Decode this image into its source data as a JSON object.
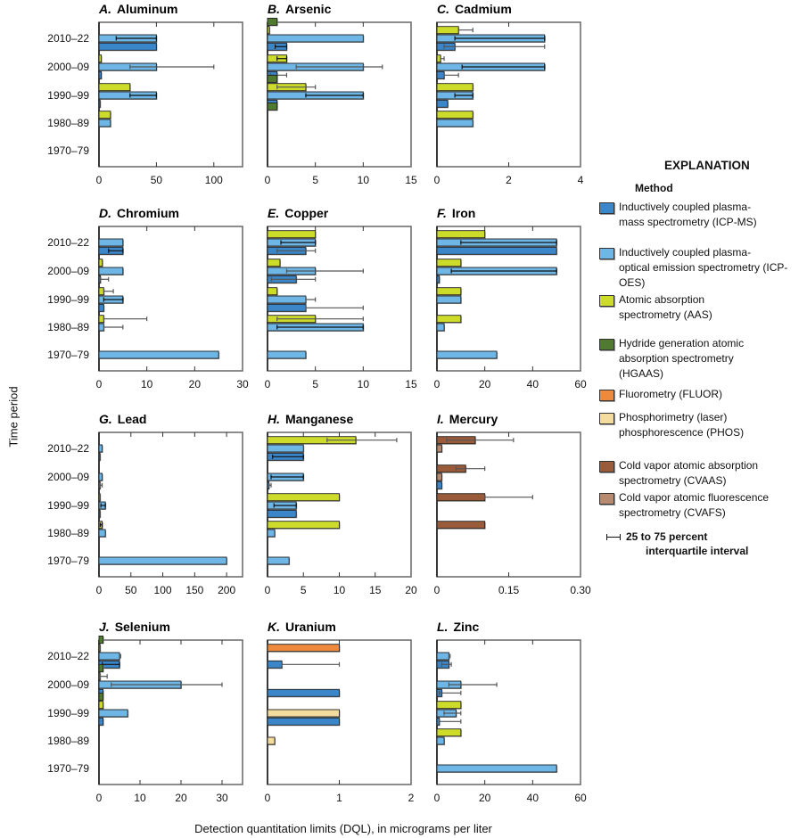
{
  "y_axis_label": "Time period",
  "x_axis_label": "Detection quantitation limits (DQL), in micrograms per liter",
  "legend": {
    "title": "EXPLANATION",
    "subtitle": "Method",
    "items": [
      {
        "key": "ICP-MS",
        "color": "#3a86c8",
        "lines": [
          "Inductively coupled plasma-",
          "mass spectrometry (ICP-MS)"
        ]
      },
      {
        "key": "ICP-OES",
        "color": "#6db6e6",
        "lines": [
          "Inductively coupled plasma-",
          "optical emission spectrometry (ICP-OES)"
        ]
      },
      {
        "key": "AAS",
        "color": "#cddc2a",
        "lines": [
          "Atomic absorption",
          "spectrometry (AAS)"
        ]
      },
      {
        "key": "HGAAS",
        "color": "#4f7a2f",
        "lines": [
          "Hydride generation atomic",
          "absorption spectrometry",
          "(HGAAS)"
        ]
      },
      {
        "key": "FLUOR",
        "color": "#ee8a3d",
        "lines": [
          "Fluorometry (FLUOR)"
        ]
      },
      {
        "key": "PHOS",
        "color": "#f3dc9e",
        "lines": [
          "Phosphorimetry (laser)",
          "phosphorescence (PHOS)"
        ]
      },
      {
        "key": "CVAAS",
        "color": "#9a5b3a",
        "lines": [
          "Cold vapor atomic absorption",
          "spectrometry (CVAAS)"
        ]
      },
      {
        "key": "CVAFS",
        "color": "#b88a70",
        "lines": [
          "Cold vapor atomic fluorescence",
          "spectrometry (CVAFS)"
        ]
      }
    ],
    "iqr_lines": [
      "25 to 75 percent",
      "interquartile interval"
    ]
  },
  "periods": [
    "2010–22",
    "2000–09",
    "1990–99",
    "1980–89",
    "1970–79"
  ],
  "chart_data": [
    {
      "type": "bar",
      "letter": "A.",
      "title": "Aluminum",
      "xlim": [
        0,
        125
      ],
      "ticks": [
        0,
        50,
        100
      ],
      "tick_labels": [
        "0",
        "50",
        "100"
      ],
      "periods": [
        [
          {
            "m": "ICP-OES",
            "v": 50,
            "iqr": [
              15,
              50
            ]
          },
          {
            "m": "ICP-MS",
            "v": 50
          }
        ],
        [
          {
            "m": "AAS",
            "v": 2
          },
          {
            "m": "ICP-OES",
            "v": 50,
            "iqr": [
              27,
              100
            ]
          },
          {
            "m": "ICP-MS",
            "v": 2
          }
        ],
        [
          {
            "m": "AAS",
            "v": 27
          },
          {
            "m": "ICP-OES",
            "v": 50,
            "iqr": [
              27,
              50
            ]
          },
          {
            "m": "ICP-MS",
            "v": 1
          }
        ],
        [
          {
            "m": "AAS",
            "v": 10
          },
          {
            "m": "ICP-OES",
            "v": 10
          }
        ],
        []
      ]
    },
    {
      "type": "bar",
      "letter": "B.",
      "title": "Arsenic",
      "xlim": [
        0,
        15
      ],
      "ticks": [
        0,
        5,
        10,
        15
      ],
      "tick_labels": [
        "0",
        "5",
        "10",
        "15"
      ],
      "periods": [
        [
          {
            "m": "HGAAS",
            "v": 1
          },
          {
            "m": "AAS",
            "v": 0.2
          },
          {
            "m": "ICP-OES",
            "v": 10
          },
          {
            "m": "ICP-MS",
            "v": 2,
            "iqr": [
              0.8,
              2
            ]
          }
        ],
        [
          {
            "m": "AAS",
            "v": 2,
            "iqr": [
              1,
              2
            ]
          },
          {
            "m": "ICP-OES",
            "v": 10,
            "iqr": [
              3,
              12
            ]
          },
          {
            "m": "ICP-MS",
            "v": 1,
            "iqr": [
              0.3,
              2
            ]
          }
        ],
        [
          {
            "m": "HGAAS",
            "v": 1
          },
          {
            "m": "AAS",
            "v": 4,
            "iqr": [
              1,
              5
            ]
          },
          {
            "m": "ICP-OES",
            "v": 10,
            "iqr": [
              4,
              10
            ]
          },
          {
            "m": "ICP-MS",
            "v": 1
          }
        ],
        [
          {
            "m": "HGAAS",
            "v": 1
          }
        ],
        []
      ]
    },
    {
      "type": "bar",
      "letter": "C.",
      "title": "Cadmium",
      "xlim": [
        0,
        4
      ],
      "ticks": [
        0,
        2,
        4
      ],
      "tick_labels": [
        "0",
        "2",
        "4"
      ],
      "periods": [
        [
          {
            "m": "AAS",
            "v": 0.6,
            "iqr": [
              0.6,
              1
            ]
          },
          {
            "m": "ICP-OES",
            "v": 3,
            "iqr": [
              0.5,
              3
            ]
          },
          {
            "m": "ICP-MS",
            "v": 0.5,
            "iqr": [
              0.2,
              3
            ]
          }
        ],
        [
          {
            "m": "AAS",
            "v": 0.1,
            "iqr": [
              0.1,
              0.2
            ]
          },
          {
            "m": "ICP-OES",
            "v": 3,
            "iqr": [
              0.7,
              3
            ]
          },
          {
            "m": "ICP-MS",
            "v": 0.2,
            "iqr": [
              0.2,
              0.6
            ]
          }
        ],
        [
          {
            "m": "AAS",
            "v": 1
          },
          {
            "m": "ICP-OES",
            "v": 1,
            "iqr": [
              0.5,
              1
            ]
          },
          {
            "m": "ICP-MS",
            "v": 0.3
          }
        ],
        [
          {
            "m": "AAS",
            "v": 1
          },
          {
            "m": "ICP-OES",
            "v": 1
          }
        ],
        []
      ]
    },
    {
      "type": "bar",
      "letter": "D.",
      "title": "Chromium",
      "xlim": [
        0,
        30
      ],
      "ticks": [
        0,
        10,
        20,
        30
      ],
      "tick_labels": [
        "0",
        "10",
        "20",
        "30"
      ],
      "periods": [
        [
          {
            "m": "ICP-OES",
            "v": 5
          },
          {
            "m": "ICP-MS",
            "v": 5,
            "iqr": [
              2,
              5
            ]
          }
        ],
        [
          {
            "m": "AAS",
            "v": 0.7
          },
          {
            "m": "ICP-OES",
            "v": 5
          },
          {
            "m": "ICP-MS",
            "v": 0.3,
            "iqr": [
              0.3,
              2
            ]
          }
        ],
        [
          {
            "m": "AAS",
            "v": 1,
            "iqr": [
              1,
              3
            ]
          },
          {
            "m": "ICP-OES",
            "v": 5,
            "iqr": [
              1,
              5
            ]
          },
          {
            "m": "ICP-MS",
            "v": 1
          }
        ],
        [
          {
            "m": "AAS",
            "v": 1,
            "iqr": [
              1,
              10
            ]
          },
          {
            "m": "ICP-OES",
            "v": 1,
            "iqr": [
              1,
              5
            ]
          }
        ],
        [
          {
            "m": "ICP-OES",
            "v": 25
          }
        ]
      ]
    },
    {
      "type": "bar",
      "letter": "E.",
      "title": "Copper",
      "xlim": [
        0,
        15
      ],
      "ticks": [
        0,
        5,
        10,
        15
      ],
      "tick_labels": [
        "0",
        "5",
        "10",
        "15"
      ],
      "periods": [
        [
          {
            "m": "AAS",
            "v": 5
          },
          {
            "m": "ICP-OES",
            "v": 5,
            "iqr": [
              1.4,
              5
            ]
          },
          {
            "m": "ICP-MS",
            "v": 4,
            "iqr": [
              1,
              5
            ]
          }
        ],
        [
          {
            "m": "AAS",
            "v": 1.3
          },
          {
            "m": "ICP-OES",
            "v": 5,
            "iqr": [
              2,
              10
            ]
          },
          {
            "m": "ICP-MS",
            "v": 3,
            "iqr": [
              0.4,
              5
            ]
          }
        ],
        [
          {
            "m": "AAS",
            "v": 1
          },
          {
            "m": "ICP-OES",
            "v": 4,
            "iqr": [
              4,
              5
            ]
          },
          {
            "m": "ICP-MS",
            "v": 4,
            "iqr": [
              4,
              10
            ]
          }
        ],
        [
          {
            "m": "AAS",
            "v": 5,
            "iqr": [
              1,
              10
            ]
          },
          {
            "m": "ICP-OES",
            "v": 10,
            "iqr": [
              1,
              10
            ]
          }
        ],
        [
          {
            "m": "ICP-OES",
            "v": 4
          }
        ]
      ]
    },
    {
      "type": "bar",
      "letter": "F.",
      "title": "Iron",
      "xlim": [
        0,
        60
      ],
      "ticks": [
        0,
        20,
        40,
        60
      ],
      "tick_labels": [
        "0",
        "20",
        "40",
        "60"
      ],
      "periods": [
        [
          {
            "m": "AAS",
            "v": 20
          },
          {
            "m": "ICP-OES",
            "v": 50,
            "iqr": [
              10,
              50
            ]
          },
          {
            "m": "ICP-MS",
            "v": 50
          }
        ],
        [
          {
            "m": "AAS",
            "v": 10
          },
          {
            "m": "ICP-OES",
            "v": 50,
            "iqr": [
              6,
              50
            ]
          },
          {
            "m": "ICP-MS",
            "v": 1
          }
        ],
        [
          {
            "m": "AAS",
            "v": 10
          },
          {
            "m": "ICP-OES",
            "v": 10
          }
        ],
        [
          {
            "m": "AAS",
            "v": 10
          },
          {
            "m": "ICP-OES",
            "v": 3
          }
        ],
        [
          {
            "m": "ICP-OES",
            "v": 25
          }
        ]
      ]
    },
    {
      "type": "bar",
      "letter": "G.",
      "title": "Lead",
      "xlim": [
        0,
        225
      ],
      "ticks": [
        0,
        50,
        100,
        150,
        200
      ],
      "tick_labels": [
        "0",
        "50",
        "100",
        "150",
        "200"
      ],
      "periods": [
        [
          {
            "m": "ICP-OES",
            "v": 5
          },
          {
            "m": "ICP-MS",
            "v": 0.5
          }
        ],
        [
          {
            "m": "ICP-OES",
            "v": 5
          },
          {
            "m": "ICP-MS",
            "v": 1,
            "iqr": [
              1,
              5
            ]
          }
        ],
        [
          {
            "m": "AAS",
            "v": 1
          },
          {
            "m": "ICP-OES",
            "v": 10,
            "iqr": [
              3,
              10
            ]
          },
          {
            "m": "ICP-MS",
            "v": 1
          }
        ],
        [
          {
            "m": "AAS",
            "v": 5,
            "iqr": [
              2,
              5
            ]
          },
          {
            "m": "ICP-OES",
            "v": 10
          }
        ],
        [
          {
            "m": "ICP-OES",
            "v": 200
          }
        ]
      ]
    },
    {
      "type": "bar",
      "letter": "H.",
      "title": "Manganese",
      "xlim": [
        0,
        20
      ],
      "ticks": [
        0,
        5,
        10,
        15,
        20
      ],
      "tick_labels": [
        "0",
        "5",
        "10",
        "15",
        "20"
      ],
      "periods": [
        [
          {
            "m": "AAS",
            "v": 12.3,
            "iqr": [
              8.3,
              18
            ]
          },
          {
            "m": "ICP-OES",
            "v": 5
          },
          {
            "m": "ICP-MS",
            "v": 5,
            "iqr": [
              0.7,
              5
            ]
          }
        ],
        [
          {
            "m": "ICP-OES",
            "v": 5,
            "iqr": [
              0.5,
              5
            ]
          },
          {
            "m": "ICP-MS",
            "v": 0.2,
            "iqr": [
              0.2,
              0.5
            ]
          }
        ],
        [
          {
            "m": "AAS",
            "v": 10
          },
          {
            "m": "ICP-OES",
            "v": 4,
            "iqr": [
              0.9,
              4
            ]
          },
          {
            "m": "ICP-MS",
            "v": 4
          }
        ],
        [
          {
            "m": "AAS",
            "v": 10
          },
          {
            "m": "ICP-OES",
            "v": 1
          }
        ],
        [
          {
            "m": "ICP-OES",
            "v": 3
          }
        ]
      ]
    },
    {
      "type": "bar",
      "letter": "I.",
      "title": "Mercury",
      "xlim": [
        0,
        0.3
      ],
      "ticks": [
        0,
        0.15,
        0.3
      ],
      "tick_labels": [
        "0",
        "0.15",
        "0.30"
      ],
      "periods": [
        [
          {
            "m": "CVAAS",
            "v": 0.08,
            "iqr": [
              0.02,
              0.16
            ]
          },
          {
            "m": "CVAFS",
            "v": 0.01
          }
        ],
        [
          {
            "m": "CVAAS",
            "v": 0.06,
            "iqr": [
              0.04,
              0.1
            ]
          },
          {
            "m": "CVAFS",
            "v": 0.01
          },
          {
            "m": "ICP-MS",
            "v": 0.01
          }
        ],
        [
          {
            "m": "CVAAS",
            "v": 0.1,
            "iqr": [
              0.1,
              0.2
            ]
          }
        ],
        [
          {
            "m": "CVAAS",
            "v": 0.1
          }
        ],
        []
      ]
    },
    {
      "type": "bar",
      "letter": "J.",
      "title": "Selenium",
      "xlim": [
        0,
        35
      ],
      "ticks": [
        0,
        10,
        20,
        30
      ],
      "tick_labels": [
        "0",
        "10",
        "20",
        "30"
      ],
      "periods": [
        [
          {
            "m": "HGAAS",
            "v": 1
          },
          {
            "m": "AAS",
            "v": 0.1
          },
          {
            "m": "ICP-OES",
            "v": 5,
            "iqr": [
              5,
              5.3
            ]
          },
          {
            "m": "ICP-MS",
            "v": 5,
            "iqr": [
              0.8,
              5
            ]
          }
        ],
        [
          {
            "m": "HGAAS",
            "v": 1
          },
          {
            "m": "AAS",
            "v": 0.2,
            "iqr": [
              0.2,
              2
            ]
          },
          {
            "m": "ICP-OES",
            "v": 20,
            "iqr": [
              3,
              30
            ]
          },
          {
            "m": "ICP-MS",
            "v": 1
          }
        ],
        [
          {
            "m": "HGAAS",
            "v": 1
          },
          {
            "m": "AAS",
            "v": 1
          },
          {
            "m": "ICP-OES",
            "v": 7
          },
          {
            "m": "ICP-MS",
            "v": 1
          }
        ],
        [],
        []
      ]
    },
    {
      "type": "bar",
      "letter": "K.",
      "title": "Uranium",
      "xlim": [
        0,
        2
      ],
      "ticks": [
        0,
        1,
        2
      ],
      "tick_labels": [
        "0",
        "1",
        "2"
      ],
      "periods": [
        [
          {
            "m": "FLUOR",
            "v": 1
          },
          {
            "m": "ICP-MS",
            "v": 0.2,
            "iqr": [
              0.2,
              1
            ]
          }
        ],
        [
          {
            "m": "ICP-MS",
            "v": 1
          }
        ],
        [
          {
            "m": "PHOS",
            "v": 1
          },
          {
            "m": "ICP-MS",
            "v": 1
          }
        ],
        [
          {
            "m": "PHOS",
            "v": 0.1
          }
        ],
        []
      ]
    },
    {
      "type": "bar",
      "letter": "L.",
      "title": "Zinc",
      "xlim": [
        0,
        60
      ],
      "ticks": [
        0,
        20,
        40,
        60
      ],
      "tick_labels": [
        "0",
        "20",
        "40",
        "60"
      ],
      "periods": [
        [
          {
            "m": "ICP-OES",
            "v": 5,
            "iqr": [
              5,
              5.5
            ]
          },
          {
            "m": "ICP-MS",
            "v": 5,
            "iqr": [
              2,
              6
            ]
          }
        ],
        [
          {
            "m": "ICP-OES",
            "v": 10,
            "iqr": [
              5,
              25
            ]
          },
          {
            "m": "ICP-MS",
            "v": 2,
            "iqr": [
              1,
              10
            ]
          }
        ],
        [
          {
            "m": "AAS",
            "v": 10
          },
          {
            "m": "ICP-OES",
            "v": 8,
            "iqr": [
              3,
              10
            ]
          },
          {
            "m": "ICP-MS",
            "v": 1,
            "iqr": [
              1,
              10
            ]
          }
        ],
        [
          {
            "m": "AAS",
            "v": 10
          },
          {
            "m": "ICP-OES",
            "v": 3
          }
        ],
        [
          {
            "m": "ICP-OES",
            "v": 50
          }
        ]
      ]
    }
  ]
}
